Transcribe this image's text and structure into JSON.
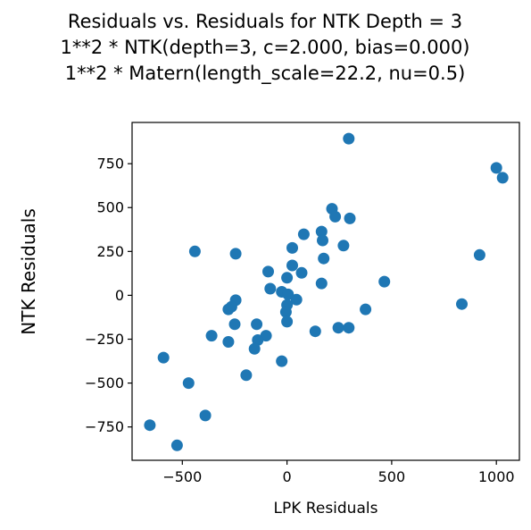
{
  "chart_data": {
    "type": "scatter",
    "title_lines": [
      "Residuals vs. Residuals for NTK Depth = 3",
      "1**2 * NTK(depth=3, c=2.000, bias=0.000)",
      "1**2 * Matern(length_scale=22.2, nu=0.5)"
    ],
    "xlabel": "LPK Residuals",
    "ylabel": "NTK Residuals",
    "xlim": [
      -740,
      1110
    ],
    "ylim": [
      -940,
      985
    ],
    "x_ticks": [
      -500,
      0,
      500,
      1000
    ],
    "x_tick_labels": [
      "−500",
      "0",
      "500",
      "1000"
    ],
    "y_ticks": [
      -750,
      -500,
      -250,
      0,
      250,
      500,
      750
    ],
    "y_tick_labels": [
      "−750",
      "−500",
      "−250",
      "0",
      "250",
      "500",
      "750"
    ],
    "grid": false,
    "marker_color": "#1f77b4",
    "points": [
      {
        "x": 295,
        "y": 893
      },
      {
        "x": 1000,
        "y": 726
      },
      {
        "x": 1030,
        "y": 670
      },
      {
        "x": 215,
        "y": 493
      },
      {
        "x": 230,
        "y": 448
      },
      {
        "x": 300,
        "y": 438
      },
      {
        "x": 165,
        "y": 363
      },
      {
        "x": 80,
        "y": 348
      },
      {
        "x": 170,
        "y": 313
      },
      {
        "x": 270,
        "y": 283
      },
      {
        "x": 25,
        "y": 270
      },
      {
        "x": -440,
        "y": 250
      },
      {
        "x": -245,
        "y": 237
      },
      {
        "x": 920,
        "y": 230
      },
      {
        "x": 175,
        "y": 210
      },
      {
        "x": 25,
        "y": 170
      },
      {
        "x": -90,
        "y": 135
      },
      {
        "x": 70,
        "y": 128
      },
      {
        "x": 0,
        "y": 100
      },
      {
        "x": 465,
        "y": 78
      },
      {
        "x": 165,
        "y": 68
      },
      {
        "x": -80,
        "y": 38
      },
      {
        "x": -25,
        "y": 20
      },
      {
        "x": 5,
        "y": 5
      },
      {
        "x": 45,
        "y": -25
      },
      {
        "x": -245,
        "y": -28
      },
      {
        "x": 835,
        "y": -50
      },
      {
        "x": 0,
        "y": -55
      },
      {
        "x": -265,
        "y": -65
      },
      {
        "x": -280,
        "y": -80
      },
      {
        "x": 375,
        "y": -80
      },
      {
        "x": -5,
        "y": -95
      },
      {
        "x": 0,
        "y": -150
      },
      {
        "x": -250,
        "y": -165
      },
      {
        "x": -145,
        "y": -165
      },
      {
        "x": 245,
        "y": -185
      },
      {
        "x": 295,
        "y": -185
      },
      {
        "x": 135,
        "y": -205
      },
      {
        "x": -360,
        "y": -230
      },
      {
        "x": -100,
        "y": -230
      },
      {
        "x": -140,
        "y": -255
      },
      {
        "x": -280,
        "y": -265
      },
      {
        "x": -155,
        "y": -305
      },
      {
        "x": -590,
        "y": -355
      },
      {
        "x": -25,
        "y": -375
      },
      {
        "x": -195,
        "y": -455
      },
      {
        "x": -470,
        "y": -500
      },
      {
        "x": -390,
        "y": -685
      },
      {
        "x": -655,
        "y": -740
      },
      {
        "x": -525,
        "y": -855
      }
    ]
  }
}
